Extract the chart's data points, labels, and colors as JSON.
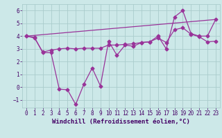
{
  "xlabel": "Windchill (Refroidissement éolien,°C)",
  "background_color": "#cce8e8",
  "grid_color": "#aacccc",
  "line_color": "#993399",
  "xlim": [
    -0.5,
    23.5
  ],
  "ylim": [
    -1.6,
    6.5
  ],
  "yticks": [
    -1,
    0,
    1,
    2,
    3,
    4,
    5,
    6
  ],
  "xticks": [
    0,
    1,
    2,
    3,
    4,
    5,
    6,
    7,
    8,
    9,
    10,
    11,
    12,
    13,
    14,
    15,
    16,
    17,
    18,
    19,
    20,
    21,
    22,
    23
  ],
  "line1_x": [
    0,
    1,
    2,
    3,
    4,
    5,
    6,
    7,
    8,
    9,
    10,
    11,
    12,
    13,
    14,
    15,
    16,
    17,
    18,
    19,
    20,
    21,
    22,
    23
  ],
  "line1_y": [
    4.0,
    3.9,
    2.7,
    2.7,
    -0.15,
    -0.2,
    -1.35,
    0.25,
    1.5,
    0.1,
    3.6,
    2.5,
    3.3,
    3.2,
    3.5,
    3.55,
    4.0,
    3.0,
    5.5,
    6.0,
    4.2,
    4.0,
    4.0,
    5.3
  ],
  "line2_x": [
    0,
    1,
    2,
    3,
    4,
    5,
    6,
    7,
    8,
    9,
    10,
    11,
    12,
    13,
    14,
    15,
    16,
    17,
    18,
    19,
    20,
    21,
    22,
    23
  ],
  "line2_y": [
    4.0,
    3.85,
    2.75,
    2.9,
    3.0,
    3.05,
    3.0,
    3.05,
    3.05,
    3.05,
    3.3,
    3.3,
    3.35,
    3.4,
    3.5,
    3.55,
    3.85,
    3.5,
    4.5,
    4.65,
    4.15,
    3.95,
    3.55,
    3.6
  ],
  "line3_x": [
    0,
    23
  ],
  "line3_y": [
    4.0,
    5.3
  ],
  "marker": "D",
  "markersize": 2.5,
  "linewidth": 0.9,
  "font_color": "#440066",
  "xlabel_fontsize": 6.5,
  "tick_fontsize": 5.5
}
